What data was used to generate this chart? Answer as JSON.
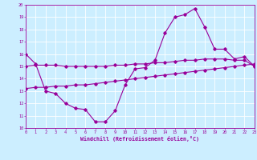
{
  "xlabel": "Windchill (Refroidissement éolien,°C)",
  "x": [
    0,
    1,
    2,
    3,
    4,
    5,
    6,
    7,
    8,
    9,
    10,
    11,
    12,
    13,
    14,
    15,
    16,
    17,
    18,
    19,
    20,
    21,
    22,
    23
  ],
  "line1": [
    16.0,
    15.2,
    13.0,
    12.8,
    12.0,
    11.6,
    11.5,
    10.5,
    10.5,
    11.4,
    13.5,
    14.8,
    14.9,
    15.5,
    17.7,
    19.0,
    19.2,
    19.7,
    18.2,
    16.4,
    16.4,
    15.6,
    15.8,
    15.0
  ],
  "line2": [
    15.0,
    15.1,
    15.1,
    15.1,
    15.0,
    15.0,
    15.0,
    15.0,
    15.0,
    15.1,
    15.1,
    15.2,
    15.2,
    15.3,
    15.3,
    15.4,
    15.5,
    15.5,
    15.6,
    15.6,
    15.6,
    15.5,
    15.5,
    15.0
  ],
  "line3": [
    13.2,
    13.3,
    13.3,
    13.4,
    13.4,
    13.5,
    13.5,
    13.6,
    13.7,
    13.8,
    13.9,
    14.0,
    14.1,
    14.2,
    14.3,
    14.4,
    14.5,
    14.6,
    14.7,
    14.8,
    14.9,
    15.0,
    15.1,
    15.2
  ],
  "line_color": "#990099",
  "bg_color": "#cceeff",
  "grid_color": "#ffffff",
  "ylim": [
    10,
    20
  ],
  "xlim": [
    0,
    23
  ],
  "yticks": [
    10,
    11,
    12,
    13,
    14,
    15,
    16,
    17,
    18,
    19,
    20
  ],
  "xticks": [
    0,
    1,
    2,
    3,
    4,
    5,
    6,
    7,
    8,
    9,
    10,
    11,
    12,
    13,
    14,
    15,
    16,
    17,
    18,
    19,
    20,
    21,
    22,
    23
  ]
}
